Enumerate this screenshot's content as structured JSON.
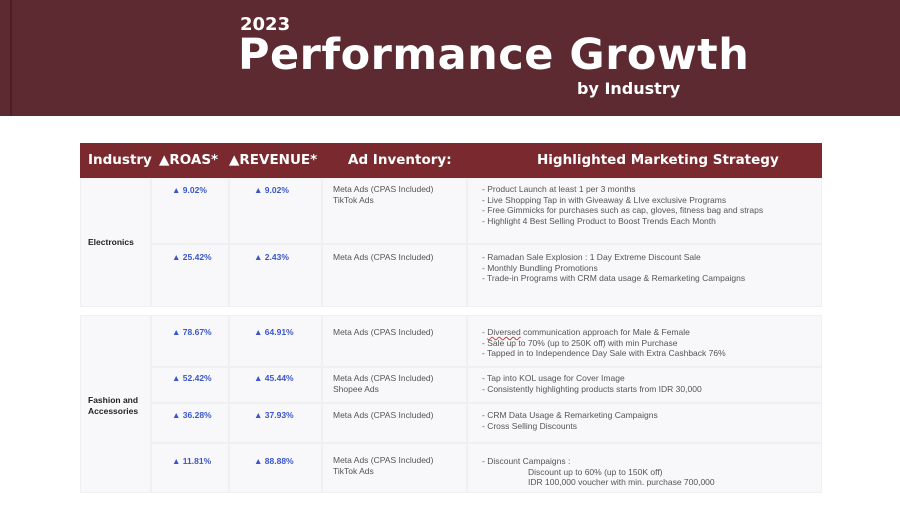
{
  "banner": {
    "year": "2023",
    "title": "Performance Growth",
    "subtitle": "by Industry"
  },
  "table": {
    "headers": {
      "industry": "Industry",
      "roas": "▲ROAS*",
      "revenue": "▲REVENUE*",
      "ad_inventory": "Ad Inventory:",
      "strategy": "Highlighted Marketing Strategy"
    },
    "groups": [
      {
        "industry": "Electronics",
        "rows": [
          {
            "roas": "▲ 9.02%",
            "revenue": "▲ 9.02%",
            "inventory": [
              "Meta Ads (CPAS Included)",
              "TikTok Ads"
            ],
            "strategy": [
              "- Product Launch at least 1 per 3 months",
              "- Live Shopping Tap in with Giveaway & LIve exclusive Programs",
              "- Free Gimmicks for purchases such as cap, gloves, fitness bag and straps",
              "- Highlight 4 Best Selling Product to Boost Trends Each Month"
            ]
          },
          {
            "roas": "▲ 25.42%",
            "revenue": "▲ 2.43%",
            "inventory": [
              "Meta Ads (CPAS Included)"
            ],
            "strategy": [
              "- Ramadan Sale Explosion : 1 Day Extreme Discount Sale",
              "- Monthly Bundling Promotions",
              "- Trade-in Programs with CRM data usage & Remarketing Campaigns"
            ]
          }
        ]
      },
      {
        "industry_line1": "Fashion and",
        "industry_line2": "Accessories",
        "rows": [
          {
            "roas": "▲ 78.67%",
            "revenue": "▲ 64.91%",
            "inventory": [
              "Meta Ads (CPAS Included)"
            ],
            "strategy_prefix": "- ",
            "strategy_marked_word": "Diversed",
            "strategy_first_rest": " communication approach for Male & Female",
            "strategy": [
              "- Sale up to 70% (up to 250K off) with min Purchase",
              "- Tapped in to Independence Day Sale with Extra Cashback 76%"
            ]
          },
          {
            "roas": "▲ 52.42%",
            "revenue": "▲ 45.44%",
            "inventory": [
              "Meta Ads (CPAS Included)",
              "Shopee Ads"
            ],
            "strategy": [
              "- Tap into KOL usage for Cover Image",
              "- Consistently highlighting products starts from IDR 30,000"
            ]
          },
          {
            "roas": "▲ 36.28%",
            "revenue": "▲ 37.93%",
            "inventory": [
              "Meta Ads (CPAS Included)"
            ],
            "strategy": [
              "- CRM Data Usage & Remarketing Campaigns",
              "- Cross Selling Discounts"
            ]
          },
          {
            "roas": "▲ 11.81%",
            "revenue": "▲ 88.88%",
            "inventory": [
              "Meta Ads (CPAS Included)",
              "TikTok Ads"
            ],
            "strategy": [
              "- Discount Campaigns :",
              "Discount up to 60% (up to 150K off)",
              "IDR 100,000 voucher with min. purchase 700,000"
            ]
          }
        ]
      }
    ]
  }
}
